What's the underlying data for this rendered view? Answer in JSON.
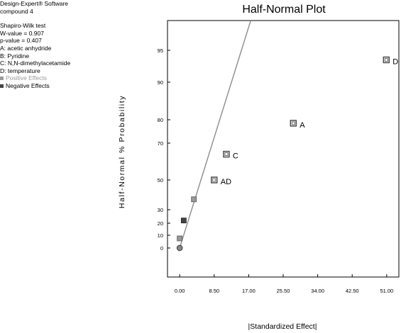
{
  "info": {
    "software": "Design-Expert® Software",
    "response": "compound 4",
    "test_name": "Shapiro-Wilk test",
    "w_value": "W-value = 0.907",
    "p_value": "p-value = 0.407",
    "factors": [
      "A: acetic anhydride",
      "B: Pyridine",
      "C: N,N-dimethylacetamide",
      "D: temperature"
    ],
    "legend": {
      "positive": "Positive Effects",
      "negative": "Negative Effects"
    }
  },
  "colors": {
    "positive": "#999999",
    "negative": "#444444",
    "line": "#8c8c8c",
    "axis": "#000000"
  },
  "chart_data": {
    "type": "scatter",
    "title": "Half-Normal Plot",
    "xlabel": "|Standardized Effect|",
    "ylabel": "Half-Normal % Probability",
    "xlim": [
      -3,
      54
    ],
    "x_ticks": [
      "0.00",
      "8.50",
      "17.00",
      "25.50",
      "34.00",
      "42.50",
      "51.00"
    ],
    "y_scale": "half-normal probability",
    "y_ticks": [
      0,
      10,
      20,
      30,
      50,
      70,
      80,
      90,
      95
    ],
    "series": [
      {
        "name": "Positive Effects",
        "points": [
          {
            "label": "D",
            "x": 50.9,
            "y": 93.5
          },
          {
            "label": "A",
            "x": 28.0,
            "y": 78.5
          },
          {
            "label": "C",
            "x": 11.5,
            "y": 64.0
          },
          {
            "label": "AD",
            "x": 8.5,
            "y": 50.0
          },
          {
            "label": "",
            "x": 3.5,
            "y": 37.0
          },
          {
            "label": "",
            "x": 0.0,
            "y": 7.5
          }
        ]
      },
      {
        "name": "Negative Effects",
        "points": [
          {
            "label": "",
            "x": 1.0,
            "y": 22.0
          }
        ]
      }
    ],
    "origin_point": {
      "x": 0.0,
      "y": 0.0
    },
    "reference_line": {
      "from": {
        "x": 0.0,
        "y": 0.0
      },
      "to": {
        "x": 17.5,
        "y": 99.4
      }
    }
  }
}
